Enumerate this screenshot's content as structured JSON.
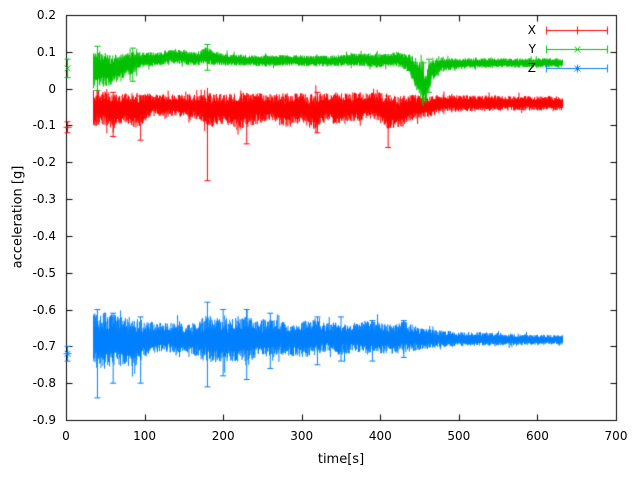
{
  "chart_data": {
    "type": "scatter",
    "title": "",
    "xlabel": "time[s]",
    "ylabel": "acceleration [g]",
    "xlim": [
      0,
      700
    ],
    "ylim": [
      -0.9,
      0.2
    ],
    "grid": false,
    "xticks": {
      "values": [
        0,
        100,
        200,
        300,
        400,
        500,
        600,
        700
      ],
      "labels": [
        "0",
        "100",
        "200",
        "300",
        "400",
        "500",
        "600",
        "700"
      ]
    },
    "yticks": {
      "values": [
        0.2,
        0.1,
        0,
        -0.1,
        -0.2,
        -0.3,
        -0.4,
        -0.5,
        -0.6,
        -0.7,
        -0.8,
        -0.9
      ],
      "labels": [
        "0.2",
        "0.1",
        "0",
        "-0.1",
        "-0.2",
        "-0.3",
        "-0.4",
        "-0.5",
        "-0.6",
        "-0.7",
        "-0.8",
        "-0.9"
      ]
    },
    "legend": {
      "position": "top-right",
      "entries": [
        "X",
        "Y",
        "Z"
      ]
    },
    "series": [
      {
        "name": "X",
        "color": "#ff0000",
        "marker": "plus",
        "style": "errorbars",
        "initial_point": {
          "t": 2,
          "y": -0.105,
          "err": 0.015
        },
        "band": [
          [
            35,
            -0.055,
            0.055
          ],
          [
            45,
            -0.05,
            0.045
          ],
          [
            60,
            -0.06,
            0.05
          ],
          [
            75,
            -0.05,
            0.04
          ],
          [
            90,
            -0.06,
            0.05
          ],
          [
            110,
            -0.045,
            0.03
          ],
          [
            140,
            -0.045,
            0.03
          ],
          [
            170,
            -0.05,
            0.035
          ],
          [
            185,
            -0.06,
            0.05
          ],
          [
            200,
            -0.055,
            0.04
          ],
          [
            220,
            -0.06,
            0.05
          ],
          [
            240,
            -0.055,
            0.045
          ],
          [
            260,
            -0.05,
            0.035
          ],
          [
            280,
            -0.06,
            0.05
          ],
          [
            300,
            -0.05,
            0.04
          ],
          [
            315,
            -0.065,
            0.05
          ],
          [
            330,
            -0.05,
            0.04
          ],
          [
            350,
            -0.055,
            0.045
          ],
          [
            370,
            -0.05,
            0.04
          ],
          [
            390,
            -0.045,
            0.035
          ],
          [
            410,
            -0.06,
            0.05
          ],
          [
            425,
            -0.065,
            0.045
          ],
          [
            440,
            -0.05,
            0.035
          ],
          [
            460,
            -0.05,
            0.03
          ],
          [
            480,
            -0.04,
            0.025
          ],
          [
            520,
            -0.04,
            0.022
          ],
          [
            560,
            -0.04,
            0.02
          ],
          [
            600,
            -0.04,
            0.02
          ],
          [
            632,
            -0.04,
            0.02
          ]
        ],
        "spikes": [
          [
            60,
            -0.13,
            -0.01
          ],
          [
            95,
            -0.14,
            -0.02
          ],
          [
            180,
            -0.25,
            -0.03
          ],
          [
            230,
            -0.15,
            -0.02
          ],
          [
            320,
            -0.12,
            -0.01
          ],
          [
            410,
            -0.16,
            -0.02
          ]
        ]
      },
      {
        "name": "Y",
        "color": "#00c000",
        "marker": "cross",
        "style": "errorbars",
        "initial_point": {
          "t": 2,
          "y": 0.055,
          "err": 0.025
        },
        "band": [
          [
            35,
            0.05,
            0.055
          ],
          [
            45,
            0.055,
            0.05
          ],
          [
            55,
            0.05,
            0.045
          ],
          [
            70,
            0.06,
            0.035
          ],
          [
            85,
            0.07,
            0.03
          ],
          [
            100,
            0.08,
            0.02
          ],
          [
            120,
            0.08,
            0.02
          ],
          [
            135,
            0.09,
            0.02
          ],
          [
            150,
            0.085,
            0.02
          ],
          [
            165,
            0.08,
            0.018
          ],
          [
            180,
            0.09,
            0.025
          ],
          [
            195,
            0.08,
            0.018
          ],
          [
            220,
            0.078,
            0.015
          ],
          [
            250,
            0.075,
            0.015
          ],
          [
            280,
            0.078,
            0.015
          ],
          [
            310,
            0.075,
            0.015
          ],
          [
            340,
            0.075,
            0.015
          ],
          [
            370,
            0.08,
            0.018
          ],
          [
            400,
            0.075,
            0.018
          ],
          [
            420,
            0.08,
            0.02
          ],
          [
            435,
            0.07,
            0.025
          ],
          [
            450,
            0.03,
            0.05
          ],
          [
            458,
            0.0,
            0.04
          ],
          [
            465,
            0.05,
            0.035
          ],
          [
            475,
            0.065,
            0.02
          ],
          [
            500,
            0.068,
            0.015
          ],
          [
            550,
            0.07,
            0.013
          ],
          [
            600,
            0.07,
            0.013
          ],
          [
            632,
            0.07,
            0.013
          ]
        ],
        "spikes": [
          [
            40,
            -0.005,
            0.115
          ],
          [
            85,
            0.02,
            0.11
          ],
          [
            180,
            0.05,
            0.12
          ],
          [
            455,
            -0.03,
            0.07
          ],
          [
            462,
            -0.01,
            0.08
          ]
        ]
      },
      {
        "name": "Z",
        "color": "#0080ff",
        "marker": "star",
        "style": "errorbars",
        "initial_point": {
          "t": 2,
          "y": -0.72,
          "err": 0.02
        },
        "band": [
          [
            35,
            -0.68,
            0.07
          ],
          [
            45,
            -0.69,
            0.08
          ],
          [
            55,
            -0.68,
            0.075
          ],
          [
            70,
            -0.685,
            0.065
          ],
          [
            85,
            -0.69,
            0.07
          ],
          [
            100,
            -0.68,
            0.05
          ],
          [
            120,
            -0.675,
            0.04
          ],
          [
            140,
            -0.68,
            0.045
          ],
          [
            160,
            -0.68,
            0.04
          ],
          [
            180,
            -0.68,
            0.065
          ],
          [
            200,
            -0.685,
            0.06
          ],
          [
            220,
            -0.68,
            0.065
          ],
          [
            240,
            -0.68,
            0.055
          ],
          [
            260,
            -0.675,
            0.05
          ],
          [
            280,
            -0.68,
            0.045
          ],
          [
            300,
            -0.68,
            0.05
          ],
          [
            315,
            -0.675,
            0.055
          ],
          [
            330,
            -0.675,
            0.04
          ],
          [
            350,
            -0.68,
            0.045
          ],
          [
            370,
            -0.675,
            0.04
          ],
          [
            390,
            -0.675,
            0.045
          ],
          [
            410,
            -0.68,
            0.04
          ],
          [
            430,
            -0.675,
            0.045
          ],
          [
            450,
            -0.68,
            0.03
          ],
          [
            470,
            -0.68,
            0.025
          ],
          [
            500,
            -0.68,
            0.02
          ],
          [
            540,
            -0.68,
            0.018
          ],
          [
            580,
            -0.682,
            0.015
          ],
          [
            632,
            -0.682,
            0.013
          ]
        ],
        "spikes": [
          [
            40,
            -0.84,
            -0.6
          ],
          [
            60,
            -0.8,
            -0.61
          ],
          [
            95,
            -0.8,
            -0.62
          ],
          [
            180,
            -0.81,
            -0.58
          ],
          [
            200,
            -0.78,
            -0.6
          ],
          [
            230,
            -0.79,
            -0.6
          ],
          [
            260,
            -0.76,
            -0.61
          ],
          [
            320,
            -0.75,
            -0.62
          ],
          [
            350,
            -0.74,
            -0.62
          ],
          [
            390,
            -0.74,
            -0.63
          ],
          [
            430,
            -0.73,
            -0.63
          ]
        ]
      }
    ]
  }
}
